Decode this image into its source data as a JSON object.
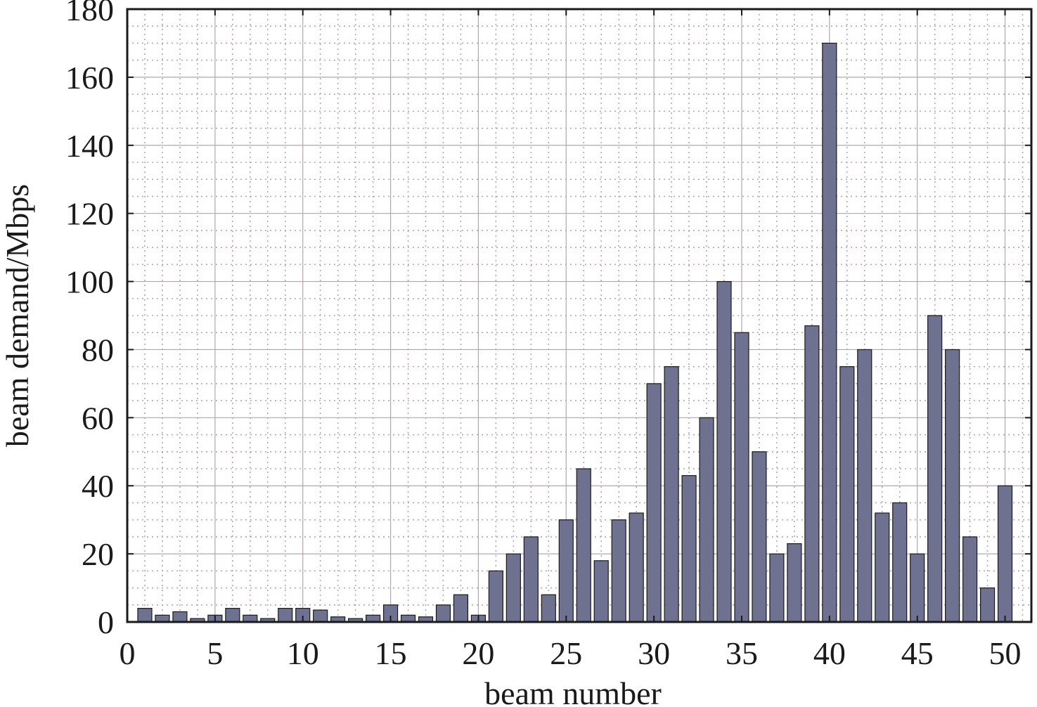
{
  "chart_data": {
    "type": "bar",
    "title": "",
    "xlabel": "beam number",
    "ylabel": "beam demand/Mbps",
    "xlim": [
      0,
      51.5
    ],
    "ylim": [
      0,
      180
    ],
    "xticks": [
      0,
      5,
      10,
      15,
      20,
      25,
      30,
      35,
      40,
      45,
      50
    ],
    "yticks": [
      0,
      20,
      40,
      60,
      80,
      100,
      120,
      140,
      160,
      180
    ],
    "grid": true,
    "bar_color": "#6e7190",
    "x": [
      1,
      2,
      3,
      4,
      5,
      6,
      7,
      8,
      9,
      10,
      11,
      12,
      13,
      14,
      15,
      16,
      17,
      18,
      19,
      20,
      21,
      22,
      23,
      24,
      25,
      26,
      27,
      28,
      29,
      30,
      31,
      32,
      33,
      34,
      35,
      36,
      37,
      38,
      39,
      40,
      41,
      42,
      43,
      44,
      45,
      46,
      47,
      48,
      49,
      50
    ],
    "values": [
      4,
      2,
      3,
      1,
      2,
      4,
      2,
      1,
      4,
      4,
      3.5,
      1.5,
      1,
      2,
      5,
      2,
      1.5,
      5,
      8,
      2,
      15,
      20,
      25,
      8,
      30,
      45,
      18,
      30,
      32,
      70,
      75,
      43,
      60,
      100,
      85,
      50,
      20,
      23,
      87,
      170,
      75,
      80,
      32,
      35,
      20,
      90,
      80,
      25,
      10,
      40
    ]
  }
}
